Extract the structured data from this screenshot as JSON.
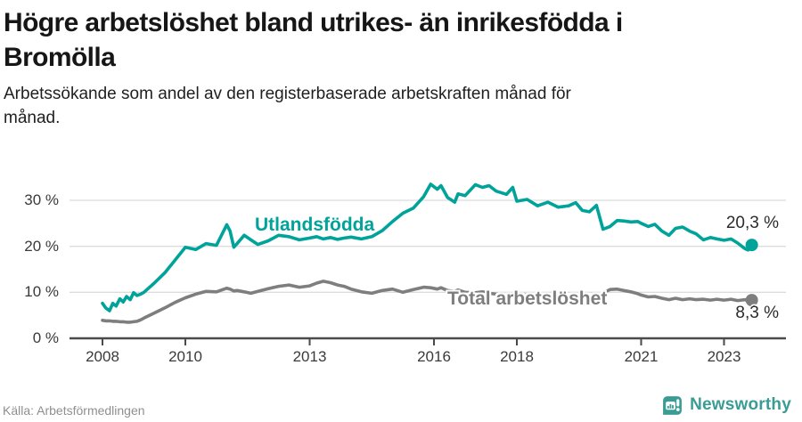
{
  "header": {
    "title_lines": [
      "Högre arbetslöshet bland utrikes- än inrikesfödda i",
      "Bromölla"
    ],
    "subtitle_lines": [
      "Arbetssökande som andel av den registerbaserade arbetskraften månad för",
      "månad."
    ]
  },
  "footer": {
    "source": "Källa: Arbetsförmedlingen",
    "brand": "Newsworthy",
    "brand_icon": "newsworthy-chart-bubble-icon",
    "brand_color": "#3a9c94"
  },
  "chart_data": {
    "type": "line",
    "title": "Högre arbetslöshet bland utrikes- än inrikesfödda i Bromölla",
    "subtitle": "Arbetssökande som andel av den registerbaserade arbetskraften månad för månad.",
    "grid": "horizontal",
    "legend_position": "inline-labels",
    "x_ticks": [
      2008,
      2010,
      2013,
      2016,
      2018,
      2021,
      2023
    ],
    "x_tick_labels": [
      "2008",
      "2010",
      "2013",
      "2016",
      "2018",
      "2021",
      "2023"
    ],
    "y_ticks": [
      0,
      10,
      20,
      30
    ],
    "y_tick_labels": [
      "0 %",
      "10 %",
      "20 %",
      "30 %"
    ],
    "y_range": [
      0,
      36.8
    ],
    "x_range": [
      2007.2,
      2024.5
    ],
    "axis_color": "#4a4a4a",
    "grid_color": "#dcdcdc",
    "x": [
      2008.0,
      2008.08,
      2008.17,
      2008.25,
      2008.33,
      2008.42,
      2008.5,
      2008.58,
      2008.67,
      2008.75,
      2008.83,
      2008.92,
      2009.0,
      2009.25,
      2009.5,
      2009.75,
      2010.0,
      2010.25,
      2010.5,
      2010.75,
      2011.0,
      2011.08,
      2011.17,
      2011.25,
      2011.42,
      2011.58,
      2011.75,
      2012.0,
      2012.25,
      2012.5,
      2012.75,
      2013.0,
      2013.17,
      2013.33,
      2013.5,
      2013.67,
      2013.83,
      2014.0,
      2014.25,
      2014.5,
      2014.75,
      2015.0,
      2015.25,
      2015.5,
      2015.75,
      2015.92,
      2016.08,
      2016.17,
      2016.33,
      2016.5,
      2016.58,
      2016.75,
      2017.0,
      2017.17,
      2017.33,
      2017.5,
      2017.75,
      2017.9,
      2018.0,
      2018.25,
      2018.5,
      2018.75,
      2019.0,
      2019.25,
      2019.42,
      2019.58,
      2019.75,
      2019.92,
      2020.08,
      2020.25,
      2020.42,
      2020.58,
      2020.75,
      2020.92,
      2021.0,
      2021.17,
      2021.33,
      2021.5,
      2021.67,
      2021.83,
      2022.0,
      2022.17,
      2022.33,
      2022.5,
      2022.67,
      2022.83,
      2023.0,
      2023.17,
      2023.33,
      2023.5,
      2023.58,
      2023.67
    ],
    "series": [
      {
        "name": "Utlandsfödda",
        "color": "#00a39a",
        "end_label": "20,3 %",
        "end_value": 20.3,
        "values": [
          7.6,
          6.6,
          6.0,
          7.6,
          7.0,
          8.6,
          7.9,
          9.1,
          8.4,
          9.9,
          9.3,
          9.6,
          10.0,
          12.0,
          14.2,
          17.0,
          19.8,
          19.3,
          20.6,
          20.2,
          24.7,
          23.3,
          19.8,
          20.6,
          22.4,
          21.4,
          20.4,
          21.2,
          22.4,
          22.1,
          21.4,
          21.8,
          22.1,
          21.6,
          21.9,
          21.5,
          21.8,
          22.0,
          21.6,
          22.1,
          23.4,
          25.4,
          27.2,
          28.3,
          30.8,
          33.5,
          32.4,
          33.2,
          30.6,
          29.6,
          31.4,
          31.0,
          33.4,
          32.8,
          33.2,
          32.0,
          31.3,
          32.8,
          29.8,
          30.2,
          28.8,
          29.6,
          28.5,
          28.8,
          29.5,
          27.8,
          27.5,
          28.9,
          23.7,
          24.3,
          25.6,
          25.5,
          25.3,
          25.4,
          25.0,
          24.3,
          24.8,
          23.3,
          22.4,
          23.9,
          24.2,
          23.3,
          22.7,
          21.4,
          21.9,
          21.6,
          21.3,
          21.6,
          20.7,
          19.5,
          19.2,
          20.3
        ]
      },
      {
        "name": "Total arbetslöshet",
        "color": "#7e7e7e",
        "end_label": "8,3 %",
        "end_value": 8.3,
        "values": [
          3.9,
          3.8,
          3.8,
          3.7,
          3.7,
          3.6,
          3.6,
          3.5,
          3.5,
          3.6,
          3.7,
          4.0,
          4.4,
          5.5,
          6.6,
          7.8,
          8.8,
          9.6,
          10.2,
          10.1,
          10.9,
          10.7,
          10.3,
          10.4,
          10.1,
          9.8,
          10.2,
          10.8,
          11.3,
          11.6,
          11.1,
          11.4,
          12.0,
          12.4,
          12.1,
          11.6,
          11.3,
          10.7,
          10.1,
          9.8,
          10.4,
          10.7,
          10.0,
          10.6,
          11.1,
          11.0,
          10.7,
          11.0,
          10.4,
          10.2,
          10.5,
          10.0,
          9.9,
          10.1,
          9.8,
          9.6,
          9.4,
          9.6,
          9.4,
          9.5,
          9.2,
          9.3,
          9.0,
          9.1,
          8.9,
          8.8,
          9.0,
          9.2,
          9.8,
          10.6,
          10.7,
          10.4,
          10.1,
          9.7,
          9.4,
          9.0,
          9.1,
          8.7,
          8.4,
          8.7,
          8.4,
          8.6,
          8.4,
          8.5,
          8.3,
          8.5,
          8.3,
          8.5,
          8.2,
          8.4,
          8.2,
          8.3
        ]
      }
    ]
  }
}
